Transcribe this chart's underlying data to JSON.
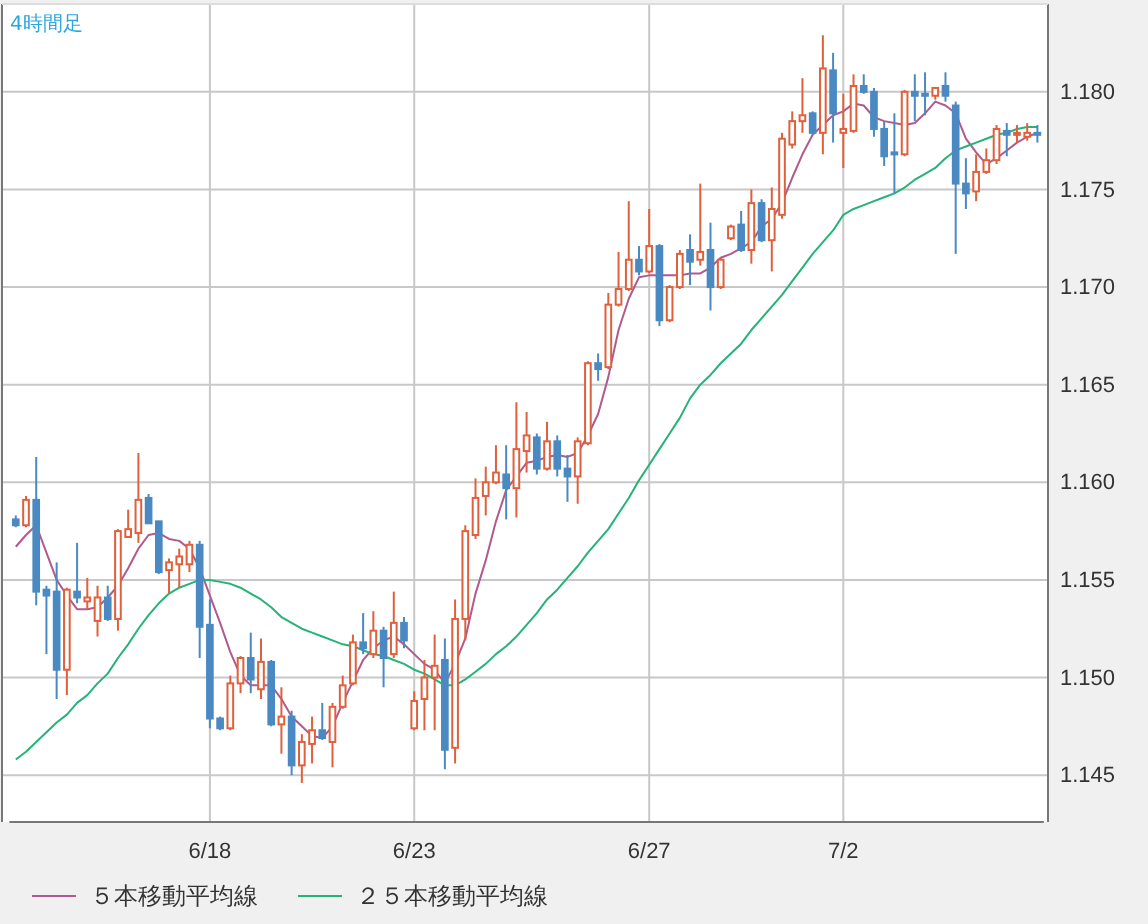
{
  "chart_data": {
    "type": "candlestick",
    "title": "4時間足",
    "categories": [
      null,
      null,
      null,
      null,
      null,
      null,
      null,
      null,
      null,
      null,
      null,
      null,
      null,
      null,
      null,
      null,
      null,
      null,
      null,
      "6/18",
      null,
      null,
      null,
      null,
      null,
      null,
      null,
      null,
      null,
      null,
      null,
      null,
      null,
      null,
      null,
      null,
      null,
      null,
      null,
      "6/23",
      null,
      null,
      null,
      null,
      null,
      null,
      null,
      null,
      null,
      null,
      null,
      null,
      null,
      null,
      null,
      null,
      null,
      null,
      null,
      null,
      null,
      null,
      "6/27",
      null,
      null,
      null,
      null,
      null,
      null,
      null,
      null,
      null,
      null,
      null,
      null,
      null,
      null,
      null,
      null,
      null,
      null,
      "7/2",
      null,
      null,
      null,
      null,
      null,
      null,
      null,
      null,
      null,
      null,
      null,
      null,
      null,
      null,
      null,
      null,
      null,
      null,
      null
    ],
    "ohlc": [
      [
        1.1581,
        1.1583,
        1.1577,
        1.1578
      ],
      [
        1.1578,
        1.1593,
        1.1577,
        1.1591
      ],
      [
        1.1591,
        1.1613,
        1.1537,
        1.1544
      ],
      [
        1.1545,
        1.1547,
        1.1512,
        1.1542
      ],
      [
        1.1544,
        1.1559,
        1.1489,
        1.1504
      ],
      [
        1.1504,
        1.1546,
        1.1491,
        1.1545
      ],
      [
        1.1544,
        1.1569,
        1.1538,
        1.1541
      ],
      [
        1.1539,
        1.1551,
        1.1535,
        1.1541
      ],
      [
        1.1529,
        1.1547,
        1.1521,
        1.1541
      ],
      [
        1.1541,
        1.1547,
        1.1529,
        1.153
      ],
      [
        1.153,
        1.1576,
        1.1524,
        1.1575
      ],
      [
        1.1572,
        1.1586,
        1.1572,
        1.1576
      ],
      [
        1.1574,
        1.1615,
        1.1569,
        1.1591
      ],
      [
        1.1592,
        1.1594,
        1.1579,
        1.1579
      ],
      [
        1.158,
        1.158,
        1.1553,
        1.1554
      ],
      [
        1.1555,
        1.1561,
        1.1543,
        1.1559
      ],
      [
        1.1558,
        1.1566,
        1.1546,
        1.1562
      ],
      [
        1.1558,
        1.157,
        1.1554,
        1.1568
      ],
      [
        1.1568,
        1.157,
        1.151,
        1.1526
      ],
      [
        1.1527,
        1.154,
        1.1474,
        1.1479
      ],
      [
        1.1479,
        1.148,
        1.1473,
        1.1474
      ],
      [
        1.1474,
        1.1501,
        1.1473,
        1.1497
      ],
      [
        1.1497,
        1.1511,
        1.1492,
        1.151
      ],
      [
        1.151,
        1.1523,
        1.1492,
        1.1499
      ],
      [
        1.1494,
        1.152,
        1.1489,
        1.1508
      ],
      [
        1.1508,
        1.1509,
        1.1475,
        1.1476
      ],
      [
        1.1476,
        1.1495,
        1.1461,
        1.148
      ],
      [
        1.148,
        1.1483,
        1.145,
        1.1455
      ],
      [
        1.1455,
        1.1471,
        1.1446,
        1.1467
      ],
      [
        1.1466,
        1.148,
        1.1456,
        1.1473
      ],
      [
        1.1473,
        1.1487,
        1.1468,
        1.1469
      ],
      [
        1.1467,
        1.1487,
        1.1454,
        1.1485
      ],
      [
        1.1485,
        1.1501,
        1.1484,
        1.1496
      ],
      [
        1.1497,
        1.1522,
        1.1496,
        1.1518
      ],
      [
        1.1518,
        1.1533,
        1.1512,
        1.1515
      ],
      [
        1.1512,
        1.1534,
        1.151,
        1.1524
      ],
      [
        1.1524,
        1.1526,
        1.1495,
        1.151
      ],
      [
        1.1512,
        1.1544,
        1.151,
        1.1528
      ],
      [
        1.1528,
        1.1531,
        1.1515,
        1.1519
      ],
      [
        1.1474,
        1.1493,
        1.1473,
        1.1488
      ],
      [
        1.1489,
        1.1509,
        1.1473,
        1.15
      ],
      [
        1.15,
        1.1522,
        1.1473,
        1.1506
      ],
      [
        1.1509,
        1.152,
        1.1453,
        1.1463
      ],
      [
        1.1464,
        1.154,
        1.1456,
        1.153
      ],
      [
        1.153,
        1.1578,
        1.1519,
        1.1575
      ],
      [
        1.1573,
        1.1602,
        1.1571,
        1.1592
      ],
      [
        1.1593,
        1.1608,
        1.1583,
        1.16
      ],
      [
        1.16,
        1.1619,
        1.1599,
        1.1605
      ],
      [
        1.1604,
        1.1619,
        1.1581,
        1.1597
      ],
      [
        1.1597,
        1.1641,
        1.1582,
        1.1617
      ],
      [
        1.1616,
        1.1636,
        1.1605,
        1.1624
      ],
      [
        1.1623,
        1.1625,
        1.1604,
        1.1607
      ],
      [
        1.1607,
        1.1631,
        1.1606,
        1.1621
      ],
      [
        1.1621,
        1.1624,
        1.1603,
        1.1607
      ],
      [
        1.1607,
        1.1614,
        1.159,
        1.1603
      ],
      [
        1.1603,
        1.1623,
        1.1589,
        1.1621
      ],
      [
        1.162,
        1.1662,
        1.1619,
        1.1661
      ],
      [
        1.1661,
        1.1666,
        1.1652,
        1.1658
      ],
      [
        1.1659,
        1.1697,
        1.1658,
        1.1691
      ],
      [
        1.1691,
        1.1718,
        1.169,
        1.1699
      ],
      [
        1.1699,
        1.1744,
        1.1698,
        1.1714
      ],
      [
        1.1714,
        1.1721,
        1.1706,
        1.1708
      ],
      [
        1.1708,
        1.174,
        1.1707,
        1.1721
      ],
      [
        1.1721,
        1.1722,
        1.168,
        1.1683
      ],
      [
        1.1683,
        1.1701,
        1.1682,
        1.17
      ],
      [
        1.17,
        1.1719,
        1.1699,
        1.1717
      ],
      [
        1.1719,
        1.1727,
        1.1701,
        1.1713
      ],
      [
        1.1714,
        1.1753,
        1.1711,
        1.1718
      ],
      [
        1.1719,
        1.1733,
        1.1688,
        1.17
      ],
      [
        1.17,
        1.1715,
        1.1699,
        1.1714
      ],
      [
        1.1725,
        1.1732,
        1.1724,
        1.1731
      ],
      [
        1.1732,
        1.1739,
        1.1718,
        1.1719
      ],
      [
        1.1719,
        1.175,
        1.1712,
        1.1743
      ],
      [
        1.1743,
        1.1745,
        1.1723,
        1.1724
      ],
      [
        1.1724,
        1.1751,
        1.1708,
        1.174
      ],
      [
        1.1737,
        1.1779,
        1.1735,
        1.1776
      ],
      [
        1.1773,
        1.179,
        1.1771,
        1.1785
      ],
      [
        1.1785,
        1.1807,
        1.1779,
        1.1788
      ],
      [
        1.1789,
        1.179,
        1.1778,
        1.1779
      ],
      [
        1.1779,
        1.1829,
        1.1768,
        1.1812
      ],
      [
        1.1811,
        1.182,
        1.1774,
        1.1789
      ],
      [
        1.1779,
        1.1799,
        1.1761,
        1.1781
      ],
      [
        1.178,
        1.1809,
        1.1779,
        1.1803
      ],
      [
        1.1803,
        1.1809,
        1.1799,
        1.18
      ],
      [
        1.18,
        1.1802,
        1.1777,
        1.1781
      ],
      [
        1.1781,
        1.1785,
        1.1762,
        1.1767
      ],
      [
        1.1769,
        1.1789,
        1.1748,
        1.1768
      ],
      [
        1.1768,
        1.1801,
        1.1767,
        1.18
      ],
      [
        1.18,
        1.1809,
        1.1785,
        1.1798
      ],
      [
        1.1799,
        1.181,
        1.1788,
        1.1798
      ],
      [
        1.1798,
        1.1802,
        1.1796,
        1.1802
      ],
      [
        1.1803,
        1.181,
        1.1795,
        1.1798
      ],
      [
        1.1793,
        1.1795,
        1.1717,
        1.1753
      ],
      [
        1.1753,
        1.1766,
        1.174,
        1.1748
      ],
      [
        1.1749,
        1.1768,
        1.1744,
        1.1759
      ],
      [
        1.1759,
        1.1771,
        1.1758,
        1.1765
      ],
      [
        1.1765,
        1.1783,
        1.1763,
        1.1781
      ],
      [
        1.178,
        1.1784,
        1.1767,
        1.1778
      ],
      [
        1.1778,
        1.1783,
        1.1774,
        1.1779
      ],
      [
        1.1777,
        1.1784,
        1.1775,
        1.1779
      ],
      [
        1.1779,
        1.1783,
        1.1774,
        1.1778
      ]
    ],
    "colors": [
      "#4a89c2",
      "#e0603c",
      "#4a89c2",
      "#4a89c2",
      "#4a89c2",
      "#e0603c",
      "#4a89c2",
      "#e0603c",
      "#e0603c",
      "#4a89c2",
      "#e0603c",
      "#e0603c",
      "#e0603c",
      "#4a89c2",
      "#4a89c2",
      "#e0603c",
      "#e0603c",
      "#e0603c",
      "#4a89c2",
      "#4a89c2",
      "#4a89c2",
      "#e0603c",
      "#e0603c",
      "#4a89c2",
      "#e0603c",
      "#4a89c2",
      "#e0603c",
      "#4a89c2",
      "#e0603c",
      "#e0603c",
      "#4a89c2",
      "#e0603c",
      "#e0603c",
      "#e0603c",
      "#4a89c2",
      "#e0603c",
      "#4a89c2",
      "#e0603c",
      "#4a89c2",
      "#e0603c",
      "#e0603c",
      "#e0603c",
      "#4a89c2",
      "#e0603c",
      "#e0603c",
      "#e0603c",
      "#e0603c",
      "#e0603c",
      "#4a89c2",
      "#e0603c",
      "#e0603c",
      "#4a89c2",
      "#e0603c",
      "#4a89c2",
      "#4a89c2",
      "#e0603c",
      "#e0603c",
      "#4a89c2",
      "#e0603c",
      "#e0603c",
      "#e0603c",
      "#4a89c2",
      "#e0603c",
      "#4a89c2",
      "#e0603c",
      "#e0603c",
      "#4a89c2",
      "#e0603c",
      "#4a89c2",
      "#e0603c",
      "#e0603c",
      "#4a89c2",
      "#e0603c",
      "#4a89c2",
      "#e0603c",
      "#e0603c",
      "#e0603c",
      "#e0603c",
      "#4a89c2",
      "#e0603c",
      "#4a89c2",
      "#e0603c",
      "#e0603c",
      "#4a89c2",
      "#4a89c2",
      "#4a89c2",
      "#4a89c2",
      "#e0603c",
      "#4a89c2",
      "#4a89c2",
      "#e0603c",
      "#4a89c2",
      "#4a89c2",
      "#4a89c2",
      "#e0603c",
      "#e0603c",
      "#e0603c",
      "#4a89c2",
      "#e0603c",
      "#e0603c",
      "#4a89c2"
    ],
    "series": [
      {
        "type": "line",
        "name": "５本移動平均線",
        "color": "#b05a8e",
        "values": [
          1.1567,
          1.1573,
          1.1578,
          1.1564,
          1.155,
          1.1542,
          1.1535,
          1.1535,
          1.1536,
          1.1541,
          1.1547,
          1.1556,
          1.1566,
          1.1573,
          1.1574,
          1.1571,
          1.157,
          1.1566,
          1.1556,
          1.1542,
          1.1528,
          1.1513,
          1.1501,
          1.1496,
          1.1496,
          1.1496,
          1.1489,
          1.148,
          1.1475,
          1.147,
          1.1469,
          1.1475,
          1.1487,
          1.1498,
          1.1509,
          1.1515,
          1.1519,
          1.1521,
          1.1517,
          1.1512,
          1.1507,
          1.1504,
          1.1497,
          1.1507,
          1.152,
          1.1543,
          1.156,
          1.158,
          1.1596,
          1.1603,
          1.161,
          1.1611,
          1.1613,
          1.1614,
          1.1613,
          1.1615,
          1.1624,
          1.1635,
          1.1654,
          1.1678,
          1.1694,
          1.1705,
          1.1706,
          1.1706,
          1.1706,
          1.1706,
          1.1707,
          1.1707,
          1.171,
          1.1715,
          1.1717,
          1.172,
          1.1723,
          1.1731,
          1.1735,
          1.1743,
          1.1756,
          1.1768,
          1.1778,
          1.1783,
          1.1788,
          1.179,
          1.1794,
          1.1793,
          1.1787,
          1.1785,
          1.1784,
          1.1783,
          1.1784,
          1.1789,
          1.1795,
          1.1793,
          1.1789,
          1.1776,
          1.1769,
          1.1763,
          1.1766,
          1.177,
          1.1774,
          1.1777,
          1.1779
        ]
      },
      {
        "type": "line",
        "name": "２５本移動平均線",
        "color": "#25b377",
        "values": [
          1.1458,
          1.1462,
          1.1467,
          1.1472,
          1.1477,
          1.1481,
          1.1487,
          1.1491,
          1.1497,
          1.1502,
          1.151,
          1.1517,
          1.1525,
          1.1532,
          1.1538,
          1.1543,
          1.1546,
          1.1548,
          1.155,
          1.155,
          1.1549,
          1.1548,
          1.1546,
          1.1543,
          1.154,
          1.1536,
          1.1531,
          1.1528,
          1.1525,
          1.1523,
          1.1521,
          1.1519,
          1.1517,
          1.1516,
          1.1514,
          1.1512,
          1.1511,
          1.1509,
          1.1507,
          1.1504,
          1.1502,
          1.1499,
          1.1496,
          1.1496,
          1.1499,
          1.1503,
          1.1507,
          1.1512,
          1.1516,
          1.1521,
          1.1527,
          1.1533,
          1.154,
          1.1545,
          1.1551,
          1.1557,
          1.1564,
          1.157,
          1.1576,
          1.1584,
          1.1592,
          1.1601,
          1.1609,
          1.1617,
          1.1625,
          1.1633,
          1.1643,
          1.165,
          1.1655,
          1.1661,
          1.1666,
          1.1671,
          1.1678,
          1.1684,
          1.169,
          1.1696,
          1.1703,
          1.171,
          1.1717,
          1.1723,
          1.1729,
          1.1737,
          1.174,
          1.1742,
          1.1744,
          1.1746,
          1.1748,
          1.1751,
          1.1755,
          1.1758,
          1.1761,
          1.1766,
          1.177,
          1.1772,
          1.1774,
          1.1776,
          1.1778,
          1.1779,
          1.1781,
          1.1782,
          1.1782
        ]
      }
    ],
    "ylim": [
      1.1426,
      1.1845
    ],
    "yticks": [
      1.145,
      {
        "value": 1.15,
        "label": "1.150"
      },
      1.155,
      {
        "value": 1.16,
        "label": "1.160"
      },
      1.165,
      {
        "value": 1.17,
        "label": "1.170"
      },
      1.175,
      {
        "value": 1.18,
        "label": "1.180"
      }
    ],
    "grid": true,
    "legend": "bottom"
  }
}
